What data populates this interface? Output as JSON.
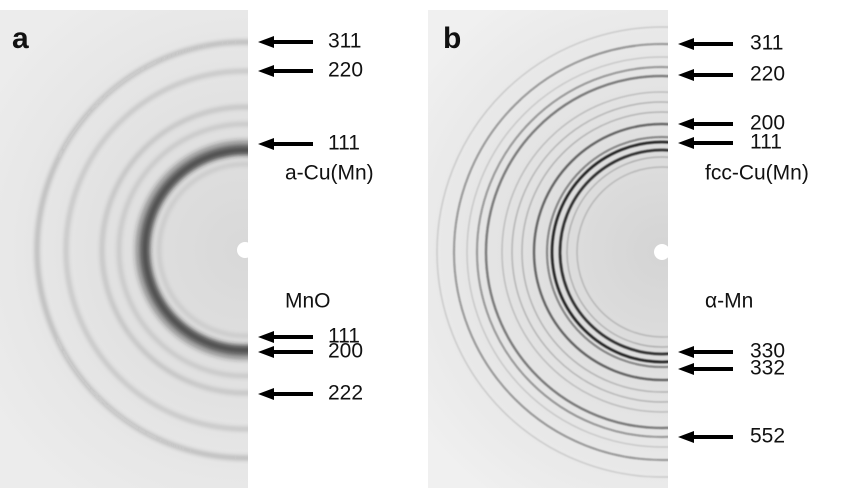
{
  "panels": [
    {
      "label": "a",
      "phases": [
        {
          "name": "a-Cu(Mn)",
          "peaks": [
            "311",
            "220",
            "111"
          ]
        },
        {
          "name": "MnO",
          "peaks": [
            "111",
            "200",
            "222"
          ]
        }
      ]
    },
    {
      "label": "b",
      "phases": [
        {
          "name": "fcc-Cu(Mn)",
          "peaks": [
            "311",
            "220",
            "200",
            "111"
          ]
        },
        {
          "name": "α-Mn",
          "peaks": [
            "330",
            "332",
            "552"
          ]
        }
      ]
    }
  ]
}
